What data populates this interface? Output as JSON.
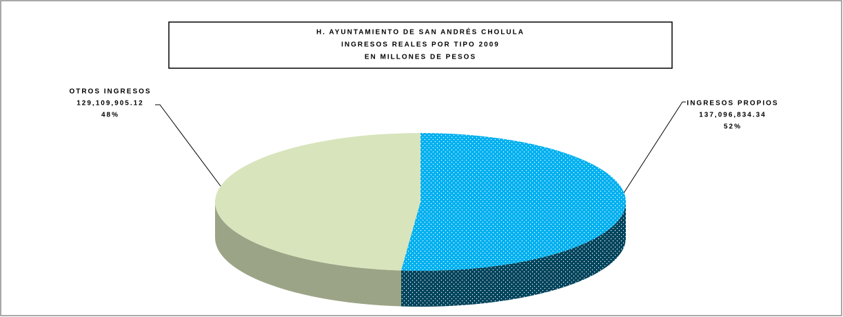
{
  "chart_data": {
    "type": "pie",
    "title": [
      "H. AYUNTAMIENTO DE SAN ANDRÉS CHOLULA",
      "INGRESOS REALES POR TIPO 2009",
      "EN MILLONES DE PESOS"
    ],
    "categories": [
      "INGRESOS PROPIOS",
      "OTROS INGRESOS"
    ],
    "values": [
      137096834.34,
      129109905.12
    ],
    "value_labels": [
      "137,096,834.34",
      "129,109,905.12"
    ],
    "percent_labels": [
      "52%",
      "48%"
    ],
    "colors": [
      "#00b0f0",
      "#d8e4bc"
    ]
  }
}
